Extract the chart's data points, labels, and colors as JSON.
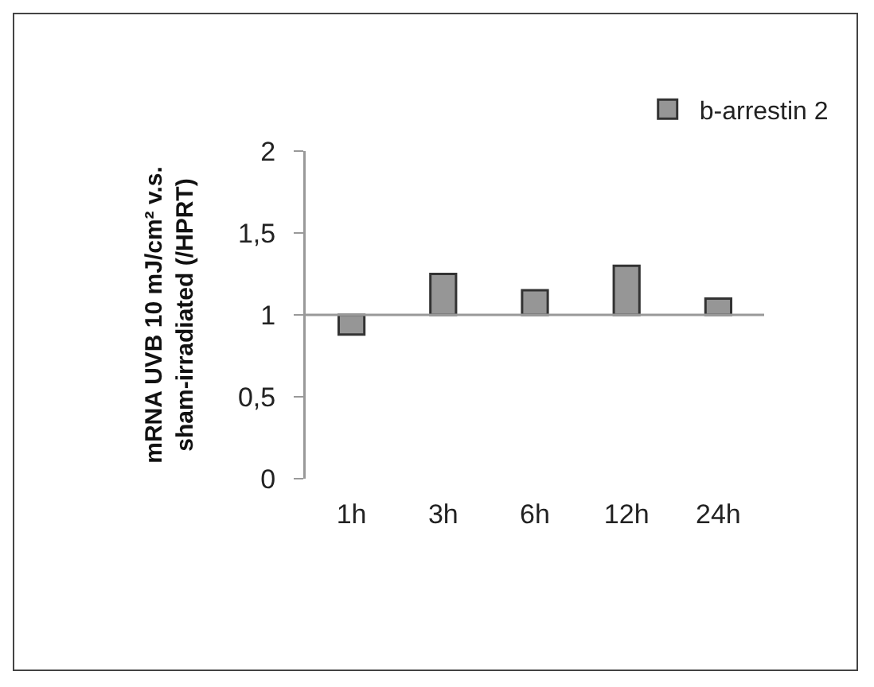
{
  "chart_data": {
    "type": "bar",
    "ylabel": "mRNA UVB 10 mJ/cm² v.s.\nsham-irradiated (/HPRT)",
    "categories": [
      "1h",
      "3h",
      "6h",
      "12h",
      "24h"
    ],
    "series": [
      {
        "name": "b-arrestin 2",
        "color": "#969696",
        "values": [
          -0.12,
          0.25,
          0.15,
          0.3,
          0.1
        ],
        "base": [
          1,
          1,
          1,
          1,
          1
        ]
      }
    ],
    "ylim": [
      0,
      2
    ],
    "yticks": [
      0,
      {
        "value": 0.5,
        "label": "0,5"
      },
      1,
      {
        "value": 1.5,
        "label": "1,5"
      },
      2
    ],
    "ref_lines": [
      {
        "axis": "y",
        "value": 1,
        "color": "#999999"
      }
    ],
    "grid": false,
    "legend": "top right"
  }
}
